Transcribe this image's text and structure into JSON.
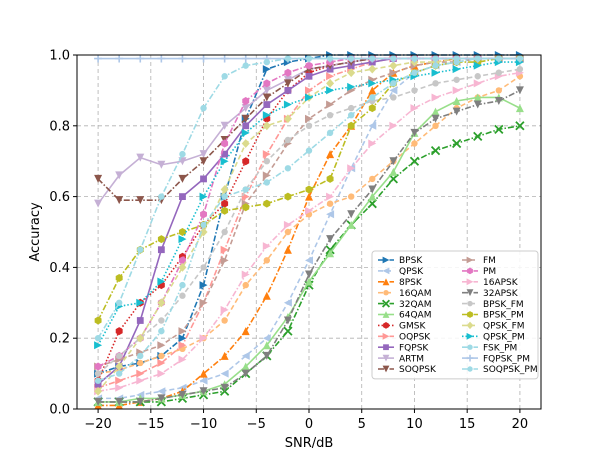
{
  "chart_data": {
    "type": "line",
    "title": "",
    "xlabel": "SNR/dB",
    "ylabel": "Accuracy",
    "xlim": [
      -22,
      22
    ],
    "ylim": [
      0.0,
      1.0
    ],
    "x_ticks": [
      -20,
      -15,
      -10,
      -5,
      0,
      5,
      10,
      15,
      20
    ],
    "x_tick_labels": [
      "−20",
      "−15",
      "−10",
      "−5",
      "0",
      "5",
      "10",
      "15",
      "20"
    ],
    "y_ticks": [
      0.0,
      0.2,
      0.4,
      0.6,
      0.8,
      1.0
    ],
    "y_tick_labels": [
      "0.0",
      "0.2",
      "0.4",
      "0.6",
      "0.8",
      "1.0"
    ],
    "grid": true,
    "legend_position": "lower-right",
    "legend_columns": 2,
    "x": [
      -20,
      -18,
      -16,
      -14,
      -12,
      -10,
      -8,
      -6,
      -4,
      -2,
      0,
      2,
      4,
      6,
      8,
      10,
      12,
      14,
      16,
      18,
      20
    ],
    "series": [
      {
        "name": "BPSK",
        "color": "#1f77b4",
        "marker": "tri-right",
        "style": "dashdot",
        "values": [
          0.1,
          0.12,
          0.13,
          0.15,
          0.2,
          0.35,
          0.6,
          0.82,
          0.96,
          0.98,
          0.99,
          1.0,
          1.0,
          1.0,
          1.0,
          1.0,
          1.0,
          1.0,
          1.0,
          1.0,
          1.0
        ]
      },
      {
        "name": "QPSK",
        "color": "#aec7e8",
        "marker": "tri-left",
        "style": "dashed",
        "values": [
          0.03,
          0.03,
          0.04,
          0.05,
          0.06,
          0.08,
          0.1,
          0.15,
          0.2,
          0.3,
          0.42,
          0.55,
          0.68,
          0.8,
          0.9,
          0.95,
          0.97,
          0.98,
          0.99,
          0.99,
          0.99
        ]
      },
      {
        "name": "8PSK",
        "color": "#ff7f0e",
        "marker": "tri-up",
        "style": "dashdot",
        "values": [
          0.01,
          0.01,
          0.02,
          0.03,
          0.05,
          0.1,
          0.15,
          0.22,
          0.32,
          0.45,
          0.6,
          0.72,
          0.8,
          0.9,
          0.95,
          0.97,
          0.98,
          0.99,
          0.99,
          0.99,
          0.99
        ]
      },
      {
        "name": "16QAM",
        "color": "#ffbb78",
        "marker": "dot",
        "style": "dashed",
        "values": [
          0.1,
          0.11,
          0.13,
          0.15,
          0.17,
          0.2,
          0.25,
          0.35,
          0.42,
          0.5,
          0.55,
          0.58,
          0.6,
          0.65,
          0.7,
          0.75,
          0.8,
          0.85,
          0.88,
          0.9,
          0.94
        ]
      },
      {
        "name": "32QAM",
        "color": "#2ca02c",
        "marker": "x",
        "style": "dashdot",
        "values": [
          0.02,
          0.02,
          0.02,
          0.02,
          0.03,
          0.04,
          0.05,
          0.1,
          0.15,
          0.22,
          0.35,
          0.45,
          0.52,
          0.58,
          0.65,
          0.7,
          0.73,
          0.75,
          0.77,
          0.79,
          0.8
        ]
      },
      {
        "name": "64QAM",
        "color": "#98df8a",
        "marker": "tri-up",
        "style": "solid",
        "values": [
          0.02,
          0.02,
          0.03,
          0.03,
          0.04,
          0.05,
          0.07,
          0.12,
          0.18,
          0.26,
          0.36,
          0.44,
          0.52,
          0.6,
          0.67,
          0.78,
          0.84,
          0.87,
          0.88,
          0.88,
          0.85
        ]
      },
      {
        "name": "GMSK",
        "color": "#d62728",
        "marker": "hexagon",
        "style": "dotted",
        "values": [
          0.08,
          0.22,
          0.3,
          0.35,
          0.43,
          0.52,
          0.58,
          0.7,
          0.82,
          0.9,
          0.95,
          0.97,
          0.98,
          0.99,
          0.99,
          0.99,
          0.99,
          0.99,
          0.99,
          0.99,
          0.99
        ]
      },
      {
        "name": "OQPSK",
        "color": "#ff9896",
        "marker": "tri-right",
        "style": "dashdot",
        "values": [
          0.06,
          0.08,
          0.1,
          0.13,
          0.18,
          0.3,
          0.45,
          0.6,
          0.72,
          0.82,
          0.9,
          0.94,
          0.96,
          0.98,
          0.99,
          0.99,
          0.99,
          0.99,
          0.99,
          0.99,
          0.99
        ]
      },
      {
        "name": "FQPSK",
        "color": "#9467bd",
        "marker": "square",
        "style": "solid",
        "values": [
          0.07,
          0.12,
          0.25,
          0.45,
          0.6,
          0.65,
          0.72,
          0.8,
          0.86,
          0.9,
          0.94,
          0.96,
          0.97,
          0.98,
          0.99,
          0.99,
          0.99,
          0.99,
          0.99,
          0.99,
          0.99
        ]
      },
      {
        "name": "ARTM",
        "color": "#c5b0d5",
        "marker": "tri-down",
        "style": "solid",
        "values": [
          0.58,
          0.66,
          0.71,
          0.69,
          0.7,
          0.72,
          0.8,
          0.85,
          0.9,
          0.93,
          0.96,
          0.97,
          0.98,
          0.99,
          0.99,
          0.99,
          0.99,
          0.99,
          0.99,
          0.99,
          0.99
        ]
      },
      {
        "name": "SOQPSK",
        "color": "#8c564b",
        "marker": "tri-down",
        "style": "dashdot",
        "values": [
          0.65,
          0.59,
          0.59,
          0.59,
          0.65,
          0.7,
          0.76,
          0.82,
          0.88,
          0.92,
          0.96,
          0.97,
          0.98,
          0.99,
          0.99,
          0.99,
          0.99,
          0.99,
          0.99,
          0.99,
          0.99
        ]
      },
      {
        "name": "FM",
        "color": "#c49c94",
        "marker": "tri-right",
        "style": "dashed",
        "values": [
          0.12,
          0.14,
          0.16,
          0.18,
          0.22,
          0.3,
          0.42,
          0.58,
          0.66,
          0.75,
          0.82,
          0.86,
          0.9,
          0.93,
          0.95,
          0.97,
          0.98,
          0.98,
          0.99,
          0.99,
          0.99
        ]
      },
      {
        "name": "PM",
        "color": "#e377c2",
        "marker": "hexagon",
        "style": "dashdot",
        "values": [
          0.12,
          0.15,
          0.2,
          0.3,
          0.42,
          0.55,
          0.75,
          0.87,
          0.92,
          0.95,
          0.97,
          0.98,
          0.99,
          0.99,
          0.99,
          0.99,
          0.99,
          0.99,
          0.99,
          0.99,
          0.99
        ]
      },
      {
        "name": "16APSK",
        "color": "#f7b6d2",
        "marker": "tri-right",
        "style": "dashdot",
        "values": [
          0.05,
          0.06,
          0.08,
          0.1,
          0.14,
          0.2,
          0.28,
          0.38,
          0.46,
          0.52,
          0.56,
          0.6,
          0.68,
          0.75,
          0.8,
          0.85,
          0.88,
          0.9,
          0.92,
          0.94,
          0.95
        ]
      },
      {
        "name": "32APSK",
        "color": "#7f7f7f",
        "marker": "tri-down",
        "style": "dashdot",
        "values": [
          0.02,
          0.02,
          0.02,
          0.03,
          0.04,
          0.05,
          0.06,
          0.1,
          0.15,
          0.25,
          0.38,
          0.48,
          0.55,
          0.62,
          0.7,
          0.78,
          0.82,
          0.84,
          0.86,
          0.87,
          0.9
        ]
      },
      {
        "name": "BPSK_FM",
        "color": "#c7c7c7",
        "marker": "dot",
        "style": "dashed",
        "values": [
          0.1,
          0.15,
          0.2,
          0.25,
          0.32,
          0.4,
          0.5,
          0.62,
          0.7,
          0.76,
          0.8,
          0.83,
          0.85,
          0.87,
          0.88,
          0.9,
          0.92,
          0.93,
          0.94,
          0.95,
          0.96
        ]
      },
      {
        "name": "BPSK_PM",
        "color": "#bcbd22",
        "marker": "hexagon",
        "style": "dashdot",
        "values": [
          0.25,
          0.37,
          0.45,
          0.48,
          0.5,
          0.52,
          0.56,
          0.57,
          0.58,
          0.6,
          0.62,
          0.65,
          0.8,
          0.85,
          0.92,
          0.95,
          0.97,
          0.98,
          0.98,
          0.99,
          0.99
        ]
      },
      {
        "name": "QPSK_FM",
        "color": "#dbdb8d",
        "marker": "diamond",
        "style": "dashed",
        "values": [
          0.05,
          0.12,
          0.2,
          0.3,
          0.4,
          0.5,
          0.62,
          0.75,
          0.8,
          0.82,
          0.88,
          0.92,
          0.95,
          0.96,
          0.97,
          0.98,
          0.98,
          0.99,
          0.99,
          0.99,
          0.99
        ]
      },
      {
        "name": "QPSK_PM",
        "color": "#17becf",
        "marker": "tri-right",
        "style": "dotted",
        "values": [
          0.18,
          0.29,
          0.3,
          0.36,
          0.48,
          0.6,
          0.7,
          0.78,
          0.83,
          0.86,
          0.88,
          0.9,
          0.91,
          0.92,
          0.93,
          0.94,
          0.95,
          0.96,
          0.97,
          0.98,
          0.98
        ]
      },
      {
        "name": "FSK_PM",
        "color": "#9edae5",
        "marker": "dot",
        "style": "dashdot",
        "values": [
          0.08,
          0.1,
          0.15,
          0.22,
          0.35,
          0.52,
          0.6,
          0.62,
          0.64,
          0.68,
          0.73,
          0.78,
          0.83,
          0.88,
          0.92,
          0.95,
          0.97,
          0.98,
          0.99,
          0.99,
          0.99
        ]
      },
      {
        "name": "FQPSK_PM",
        "color": "#aec7e8",
        "marker": "plus",
        "style": "solid",
        "values": [
          0.99,
          0.99,
          0.99,
          0.99,
          0.99,
          0.99,
          0.99,
          0.99,
          0.99,
          0.99,
          0.99,
          0.99,
          0.99,
          0.99,
          0.99,
          0.99,
          0.99,
          0.99,
          0.99,
          0.99,
          0.99
        ]
      },
      {
        "name": "SOQPSK_PM",
        "color": "#9edae5",
        "marker": "dot",
        "style": "dashdot",
        "values": [
          0.2,
          0.3,
          0.45,
          0.6,
          0.72,
          0.85,
          0.94,
          0.97,
          0.98,
          0.99,
          0.99,
          0.99,
          0.99,
          0.99,
          0.99,
          0.99,
          0.99,
          0.99,
          0.99,
          0.99,
          0.99
        ]
      }
    ]
  }
}
